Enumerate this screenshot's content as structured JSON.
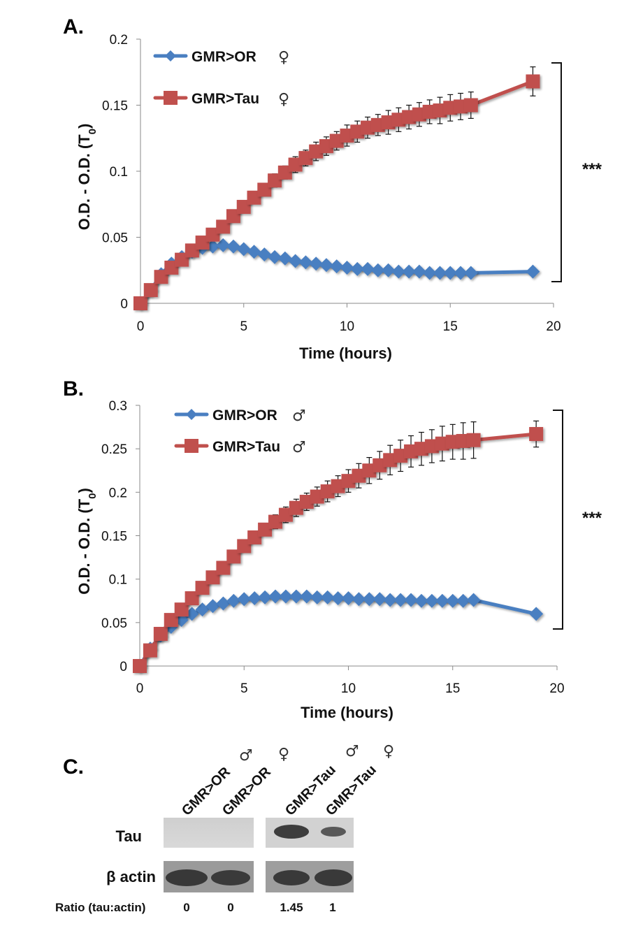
{
  "figure": {
    "panels": [
      "A.",
      "B.",
      "C."
    ],
    "significance": "***"
  },
  "chart_data": [
    {
      "type": "line",
      "panel": "A.",
      "title": "",
      "xlabel": "Time (hours)",
      "ylabel": "O.D. - O.D. (T0)",
      "ylabel_main": "O.D. - O.D. (T",
      "ylabel_sub": "0",
      "ylabel_end": ")",
      "xlim": [
        0,
        20
      ],
      "ylim": [
        0,
        0.2
      ],
      "xticks": [
        0,
        5,
        10,
        15,
        20
      ],
      "yticks": [
        0,
        0.05,
        0.1,
        0.15,
        0.2
      ],
      "ytick_labels": [
        "0",
        "0.05",
        "0.1",
        "0.15",
        "0.2"
      ],
      "grid": false,
      "legend_position": "top-left",
      "significance": "***",
      "x": [
        0,
        0.5,
        1,
        1.5,
        2,
        2.5,
        3,
        3.5,
        4,
        4.5,
        5,
        5.5,
        6,
        6.5,
        7,
        7.5,
        8,
        8.5,
        9,
        9.5,
        10,
        10.5,
        11,
        11.5,
        12,
        12.5,
        13,
        13.5,
        14,
        14.5,
        15,
        15.5,
        16,
        19
      ],
      "series": [
        {
          "name": "GMR>OR",
          "sex_symbol": "♀",
          "color": "#4a7fc1",
          "marker": "diamond",
          "values": [
            0,
            0.01,
            0.022,
            0.03,
            0.035,
            0.039,
            0.042,
            0.043,
            0.044,
            0.043,
            0.041,
            0.039,
            0.037,
            0.035,
            0.034,
            0.032,
            0.031,
            0.03,
            0.029,
            0.028,
            0.027,
            0.026,
            0.026,
            0.025,
            0.025,
            0.024,
            0.024,
            0.024,
            0.023,
            0.023,
            0.023,
            0.023,
            0.023,
            0.024
          ],
          "errors": [
            0,
            0.001,
            0.001,
            0.001,
            0.001,
            0.001,
            0.001,
            0.001,
            0.001,
            0.001,
            0.001,
            0.001,
            0.001,
            0.001,
            0.001,
            0.001,
            0.001,
            0.001,
            0.001,
            0.001,
            0.001,
            0.001,
            0.001,
            0.001,
            0.001,
            0.001,
            0.001,
            0.001,
            0.001,
            0.001,
            0.001,
            0.001,
            0.001,
            0.001
          ]
        },
        {
          "name": "GMR>Tau",
          "sex_symbol": "♀",
          "color": "#c0504d",
          "marker": "square",
          "values": [
            0,
            0.01,
            0.02,
            0.027,
            0.033,
            0.04,
            0.046,
            0.052,
            0.058,
            0.066,
            0.073,
            0.08,
            0.086,
            0.093,
            0.099,
            0.105,
            0.11,
            0.115,
            0.119,
            0.123,
            0.127,
            0.13,
            0.133,
            0.135,
            0.137,
            0.139,
            0.141,
            0.143,
            0.145,
            0.146,
            0.148,
            0.149,
            0.15,
            0.168
          ],
          "errors": [
            0,
            0.001,
            0.001,
            0.001,
            0.001,
            0.001,
            0.001,
            0.002,
            0.002,
            0.003,
            0.003,
            0.004,
            0.004,
            0.005,
            0.005,
            0.006,
            0.006,
            0.007,
            0.007,
            0.007,
            0.008,
            0.008,
            0.008,
            0.008,
            0.009,
            0.009,
            0.009,
            0.009,
            0.009,
            0.01,
            0.01,
            0.01,
            0.01,
            0.011
          ]
        }
      ]
    },
    {
      "type": "line",
      "panel": "B.",
      "title": "",
      "xlabel": "Time (hours)",
      "ylabel": "O.D. - O.D. (T0)",
      "ylabel_main": "O.D. - O.D. (T",
      "ylabel_sub": "0",
      "ylabel_end": ")",
      "xlim": [
        0,
        20
      ],
      "ylim": [
        0,
        0.3
      ],
      "xticks": [
        0,
        5,
        10,
        15,
        20
      ],
      "yticks": [
        0,
        0.05,
        0.1,
        0.15,
        0.2,
        0.25,
        0.3
      ],
      "ytick_labels": [
        "0",
        "0.05",
        "0.1",
        "0.15",
        "0.2",
        "0.25",
        "0.3"
      ],
      "grid": false,
      "legend_position": "top-left",
      "significance": "***",
      "x": [
        0,
        0.5,
        1,
        1.5,
        2,
        2.5,
        3,
        3.5,
        4,
        4.5,
        5,
        5.5,
        6,
        6.5,
        7,
        7.5,
        8,
        8.5,
        9,
        9.5,
        10,
        10.5,
        11,
        11.5,
        12,
        12.5,
        13,
        13.5,
        14,
        14.5,
        15,
        15.5,
        16,
        19
      ],
      "series": [
        {
          "name": "GMR>OR",
          "sex_symbol": "♂",
          "color": "#4a7fc1",
          "marker": "diamond",
          "values": [
            0,
            0.02,
            0.035,
            0.045,
            0.053,
            0.06,
            0.065,
            0.069,
            0.072,
            0.075,
            0.077,
            0.078,
            0.079,
            0.08,
            0.08,
            0.08,
            0.08,
            0.079,
            0.079,
            0.078,
            0.078,
            0.077,
            0.077,
            0.077,
            0.076,
            0.076,
            0.076,
            0.075,
            0.075,
            0.075,
            0.075,
            0.075,
            0.076,
            0.06
          ],
          "errors": [
            0,
            0.001,
            0.002,
            0.002,
            0.002,
            0.003,
            0.003,
            0.003,
            0.003,
            0.003,
            0.003,
            0.003,
            0.003,
            0.003,
            0.003,
            0.003,
            0.003,
            0.003,
            0.003,
            0.003,
            0.003,
            0.003,
            0.003,
            0.003,
            0.003,
            0.003,
            0.003,
            0.003,
            0.003,
            0.003,
            0.003,
            0.003,
            0.003,
            0.004
          ]
        },
        {
          "name": "GMR>Tau",
          "sex_symbol": "♂",
          "color": "#c0504d",
          "marker": "square",
          "values": [
            0,
            0.018,
            0.037,
            0.053,
            0.065,
            0.078,
            0.09,
            0.102,
            0.113,
            0.126,
            0.138,
            0.148,
            0.157,
            0.166,
            0.174,
            0.182,
            0.189,
            0.195,
            0.201,
            0.207,
            0.213,
            0.219,
            0.225,
            0.231,
            0.237,
            0.242,
            0.247,
            0.25,
            0.253,
            0.256,
            0.258,
            0.259,
            0.26,
            0.267
          ],
          "errors": [
            0,
            0.001,
            0.001,
            0.001,
            0.002,
            0.002,
            0.002,
            0.003,
            0.004,
            0.004,
            0.005,
            0.006,
            0.007,
            0.008,
            0.009,
            0.01,
            0.01,
            0.011,
            0.012,
            0.012,
            0.013,
            0.014,
            0.015,
            0.016,
            0.017,
            0.018,
            0.018,
            0.019,
            0.019,
            0.02,
            0.02,
            0.021,
            0.021,
            0.015
          ]
        }
      ]
    }
  ],
  "western_blot": {
    "panel": "C.",
    "lanes": [
      {
        "label": "GMR>OR",
        "sex_symbol": "♂",
        "ratio": "0"
      },
      {
        "label": "GMR>OR",
        "sex_symbol": "♀",
        "ratio": "0"
      },
      {
        "label": "GMR>Tau",
        "sex_symbol": "♂",
        "ratio": "1.45"
      },
      {
        "label": "GMR>Tau",
        "sex_symbol": "♀",
        "ratio": "1"
      }
    ],
    "rows": [
      {
        "label": "Tau"
      },
      {
        "label": "β actin"
      }
    ],
    "ratio_label": "Ratio (tau:actin)",
    "ratio_values": [
      0,
      0,
      1.45,
      1
    ]
  }
}
